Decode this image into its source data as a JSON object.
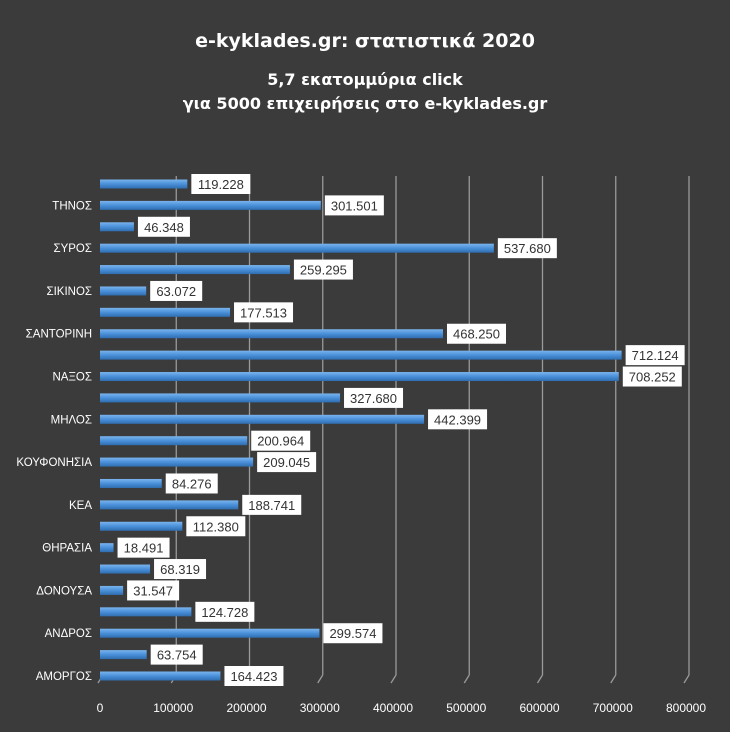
{
  "chart_data": {
    "type": "bar",
    "orientation": "horizontal",
    "title": "e-kyklades.gr: στατιστικά 2020",
    "subtitle": [
      "5,7 εκατομμύρια click",
      "για 5000 επιχειρήσεις στο e-kyklades.gr"
    ],
    "categories": [
      "ΑΜΟΡΓΟΣ",
      "",
      "ΑΝΔΡΟΣ",
      "",
      "ΔΟΝΟΥΣΑ",
      "",
      "ΘΗΡΑΣΙΑ",
      "",
      "ΚΕΑ",
      "",
      "ΚΟΥΦΟΝΗΣΙΑ",
      "",
      "ΜΗΛΟΣ",
      "",
      "ΝΑΞΟΣ",
      "",
      "ΣΑΝΤΟΡΙΝΗ",
      "",
      "ΣΙΚΙΝΟΣ",
      "",
      "ΣΥΡΟΣ",
      "",
      "ΤΗΝΟΣ",
      ""
    ],
    "values": [
      164423,
      63754,
      299574,
      124728,
      31547,
      68319,
      18491,
      112380,
      188741,
      84276,
      209045,
      200964,
      442399,
      327680,
      708252,
      712124,
      468250,
      177513,
      63072,
      259295,
      537680,
      46348,
      301501,
      119228
    ],
    "data_labels": [
      "164.423",
      "63.754",
      "299.574",
      "124.728",
      "31.547",
      "68.319",
      "18.491",
      "112.380",
      "188.741",
      "84.276",
      "209.045",
      "200.964",
      "442.399",
      "327.680",
      "708.252",
      "712.124",
      "468.250",
      "177.513",
      "63.072",
      "259.295",
      "537.680",
      "46.348",
      "301.501",
      "119.228"
    ],
    "xlim": [
      0,
      800000
    ],
    "xticks": [
      "0",
      "100000",
      "200000",
      "300000",
      "400000",
      "500000",
      "600000",
      "700000",
      "800000"
    ],
    "grid": "vertical",
    "legend": "none",
    "colors": {
      "bar": "#4a90d9",
      "background": "#3b3b3b",
      "grid": "#9a9a9a",
      "text": "#ffffff"
    }
  }
}
